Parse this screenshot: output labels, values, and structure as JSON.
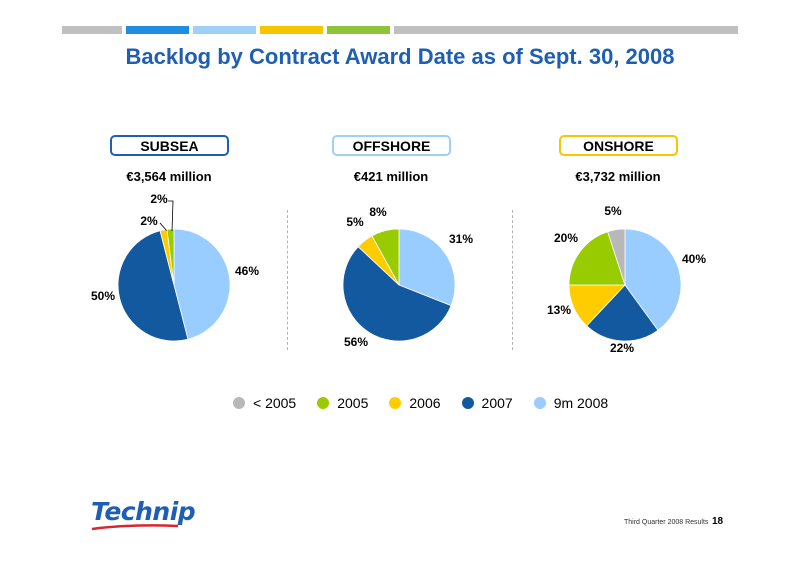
{
  "header": {
    "title": "Backlog by Contract Award Date as of Sept. 30, 2008",
    "stripe_colors": [
      "#c0c0c0",
      "#1f8ee0",
      "#9fd0f7",
      "#f6c700",
      "#8ec43a",
      "#c0c0c0"
    ]
  },
  "segments": [
    {
      "label": "SUBSEA",
      "total": "€3,564 million",
      "tag_color": "#1e5fb4"
    },
    {
      "label": "OFFSHORE",
      "total": "€421 million",
      "tag_color": "#9fd0f7"
    },
    {
      "label": "ONSHORE",
      "total": "€3,732 million",
      "tag_color": "#f6c700"
    }
  ],
  "legend": [
    {
      "label": "< 2005",
      "color": "#b8b8b8"
    },
    {
      "label": "2005",
      "color": "#99cc00"
    },
    {
      "label": "2006",
      "color": "#ffcc00"
    },
    {
      "label": "2007",
      "color": "#1359a0"
    },
    {
      "label": "9m 2008",
      "color": "#99ccff"
    }
  ],
  "chart_data": [
    {
      "type": "pie",
      "title": "SUBSEA",
      "subtitle": "€3,564 million",
      "categories": [
        "9m 2008",
        "2007",
        "2006",
        "2005"
      ],
      "values": [
        46,
        50,
        2,
        2
      ],
      "labels": [
        "46%",
        "50%",
        "2%",
        "2%"
      ],
      "colors": [
        "#99ccff",
        "#1359a0",
        "#ffcc00",
        "#99cc00"
      ]
    },
    {
      "type": "pie",
      "title": "OFFSHORE",
      "subtitle": "€421 million",
      "categories": [
        "9m 2008",
        "2007",
        "2006",
        "2005"
      ],
      "values": [
        31,
        56,
        5,
        8
      ],
      "labels": [
        "31%",
        "56%",
        "5%",
        "8%"
      ],
      "colors": [
        "#99ccff",
        "#1359a0",
        "#ffcc00",
        "#99cc00"
      ]
    },
    {
      "type": "pie",
      "title": "ONSHORE",
      "subtitle": "€3,732 million",
      "categories": [
        "9m 2008",
        "2007",
        "2006",
        "2005",
        "< 2005"
      ],
      "values": [
        40,
        22,
        13,
        20,
        5
      ],
      "labels": [
        "40%",
        "22%",
        "13%",
        "20%",
        "5%"
      ],
      "colors": [
        "#99ccff",
        "#1359a0",
        "#ffcc00",
        "#99cc00",
        "#b8b8b8"
      ]
    }
  ],
  "footer": {
    "logo_text": "Technip",
    "caption": "Third Quarter 2008 Results",
    "page": "18"
  }
}
